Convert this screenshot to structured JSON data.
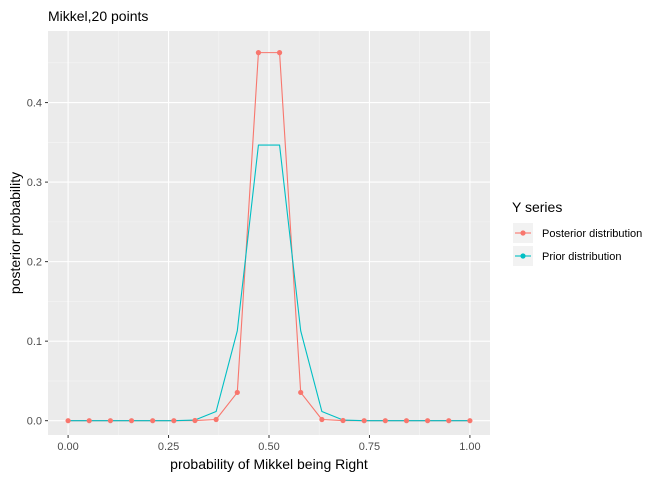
{
  "chart_data": {
    "type": "line",
    "title": "Mikkel,20 points",
    "xlabel": "probability of Mikkel being Right",
    "ylabel": "posterior probability",
    "xlim": [
      -0.05,
      1.05
    ],
    "ylim": [
      -0.018,
      0.49
    ],
    "xticks": [
      0.0,
      0.25,
      0.5,
      0.75,
      1.0
    ],
    "xtick_labels": [
      "0.00",
      "0.25",
      "0.50",
      "0.75",
      "1.00"
    ],
    "yticks": [
      0.0,
      0.1,
      0.2,
      0.3,
      0.4
    ],
    "ytick_labels": [
      "0.0",
      "0.1",
      "0.2",
      "0.3",
      "0.4"
    ],
    "grid": true,
    "background": "#ebebeb",
    "legend": {
      "title": "Y series",
      "position": "right"
    },
    "x": [
      0.0,
      0.0526,
      0.1053,
      0.1579,
      0.2105,
      0.2632,
      0.3158,
      0.3684,
      0.4211,
      0.4737,
      0.5263,
      0.5789,
      0.6316,
      0.6842,
      0.7368,
      0.7895,
      0.8421,
      0.8947,
      0.9474,
      1.0
    ],
    "series": [
      {
        "name": "Posterior distribution",
        "color": "#F8766D",
        "markers": true,
        "values": [
          0,
          0,
          0,
          0,
          0,
          0,
          0.0002,
          0.0015,
          0.0355,
          0.4628,
          0.4628,
          0.0355,
          0.0015,
          0.0002,
          0,
          0,
          0,
          0,
          0,
          0
        ]
      },
      {
        "name": "Prior distribution",
        "color": "#00BFC4",
        "markers": false,
        "values": [
          0,
          0,
          0,
          0,
          0,
          0,
          0.0008,
          0.0115,
          0.113,
          0.3466,
          0.3466,
          0.113,
          0.0115,
          0.0008,
          0,
          0,
          0,
          0,
          0,
          0
        ]
      }
    ]
  }
}
